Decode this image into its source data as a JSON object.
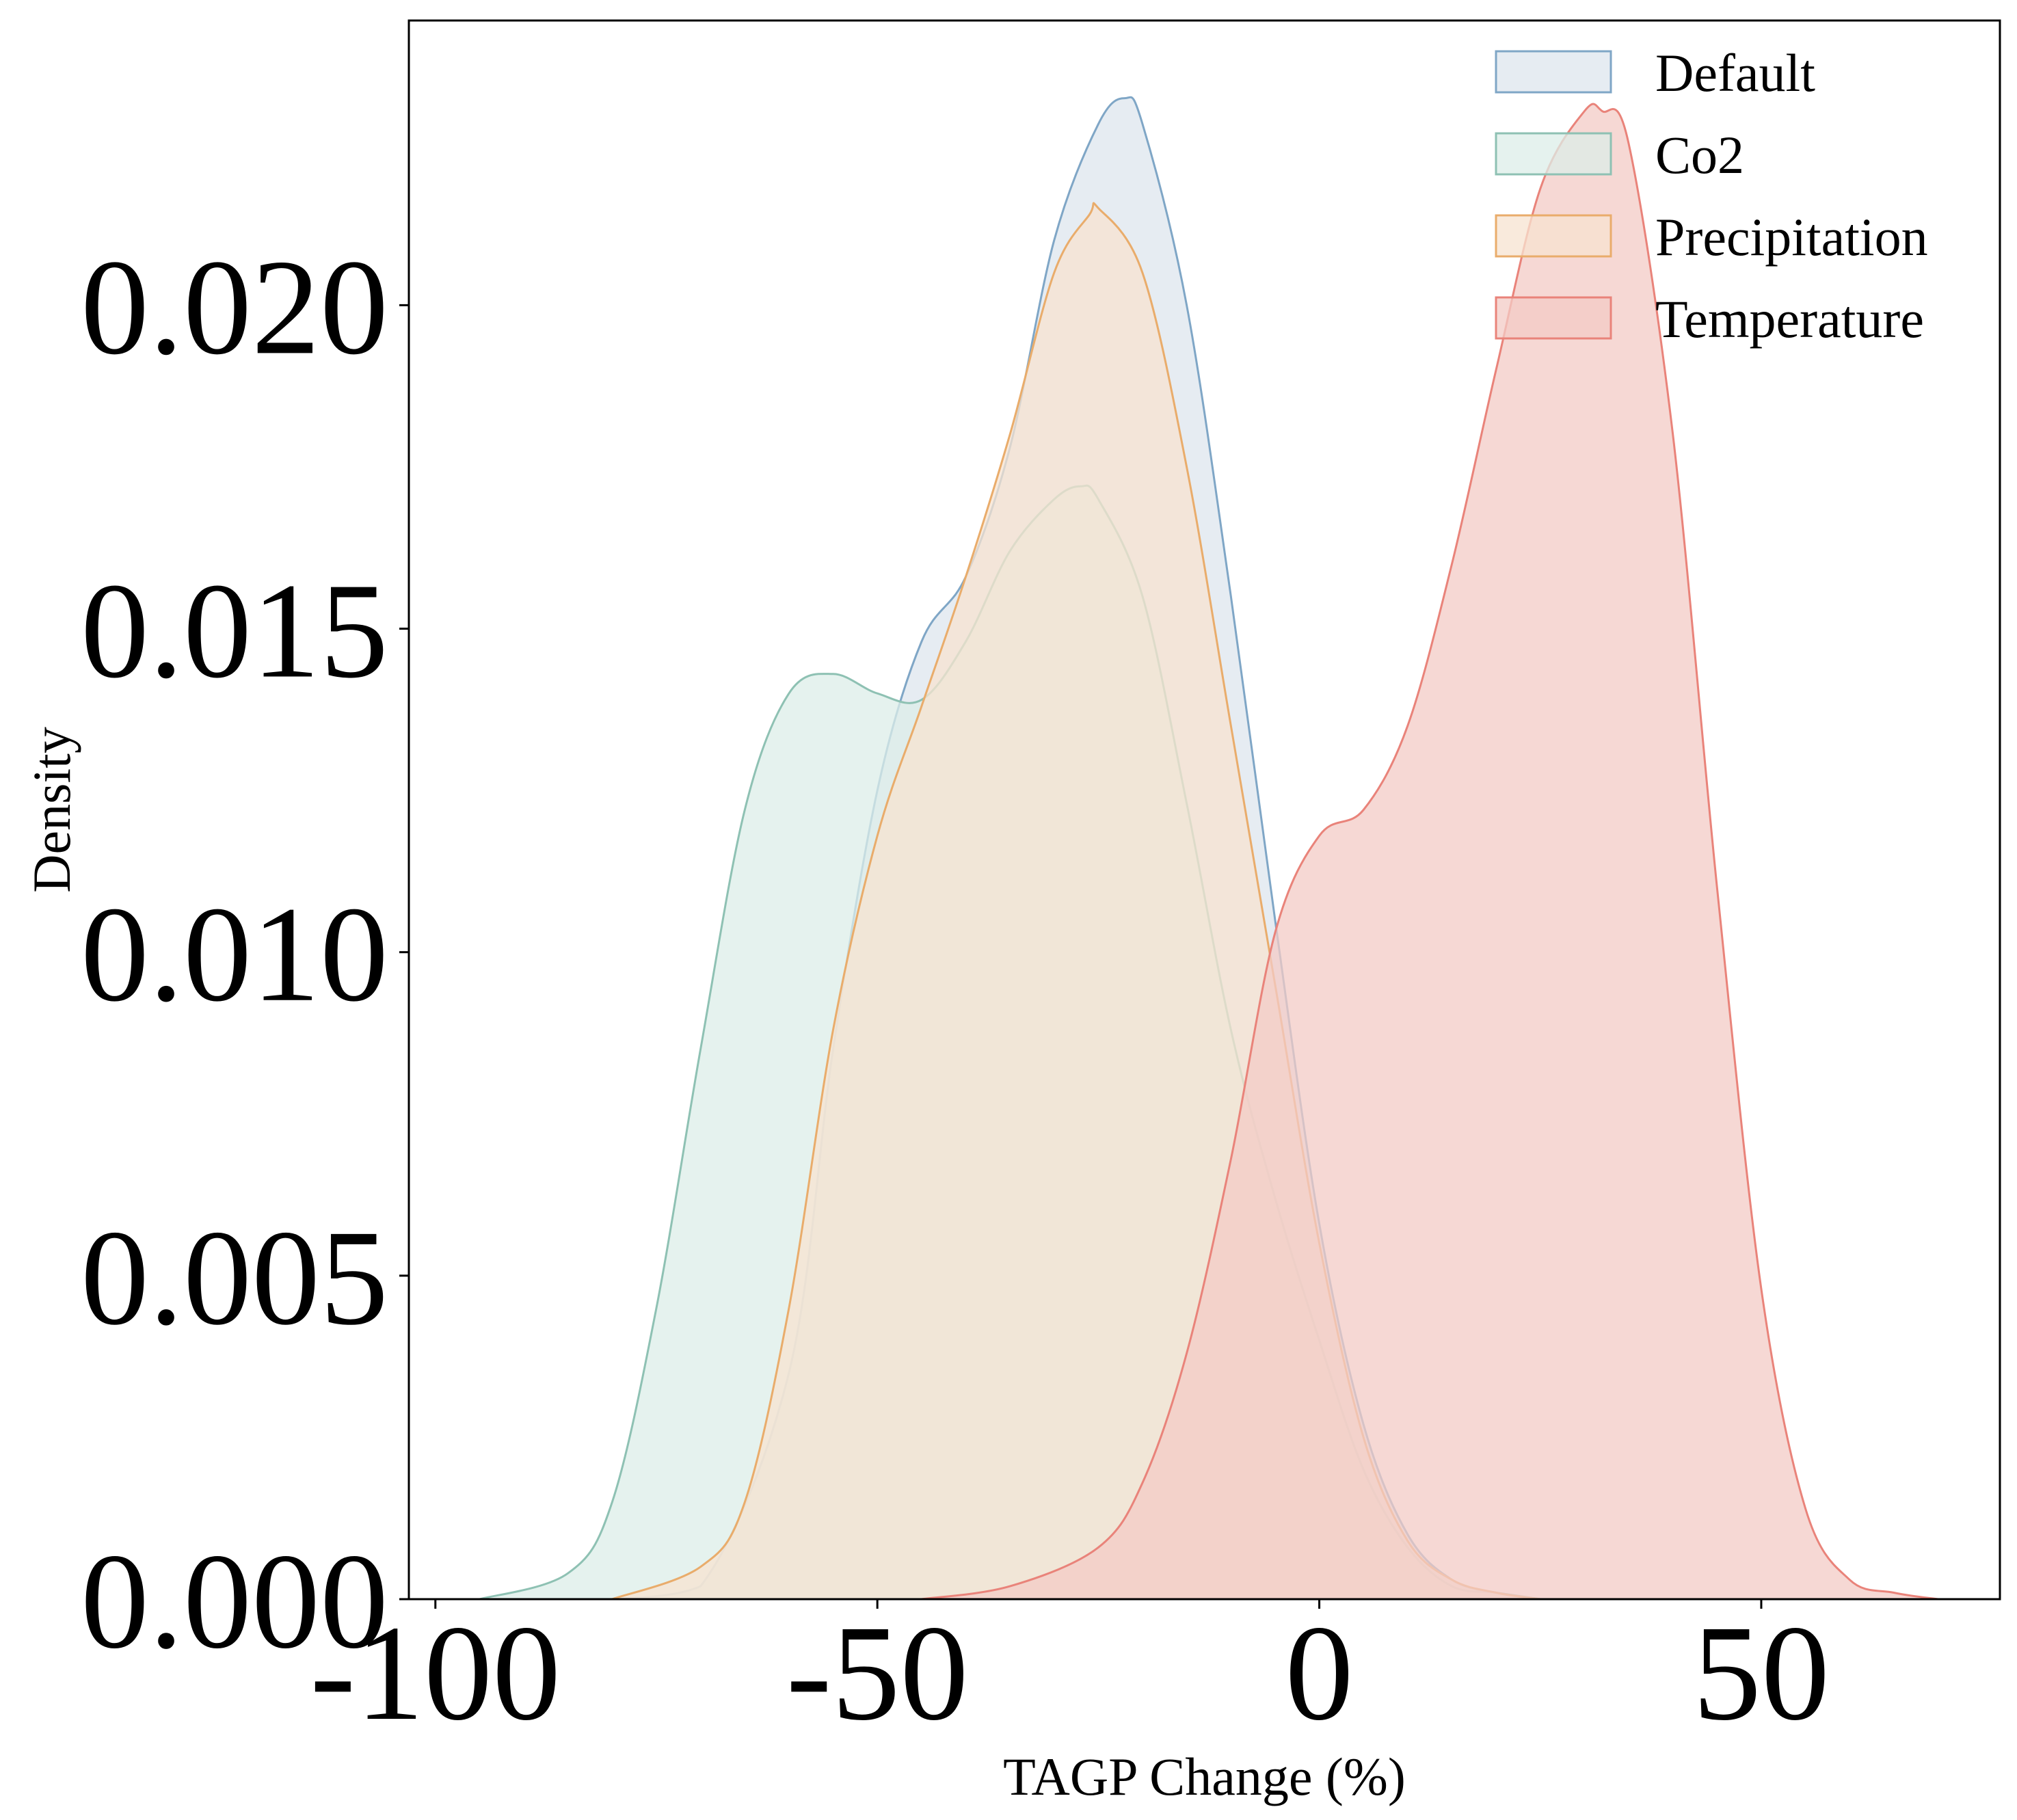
{
  "chart_data": {
    "type": "area",
    "subtype": "kde-density",
    "title": "",
    "xlabel": "TAGP Change (%)",
    "ylabel": "Density",
    "xlim": [
      -103,
      77
    ],
    "ylim": [
      0,
      0.0244
    ],
    "x_ticks": [
      -100,
      -50,
      0,
      50
    ],
    "x_tick_labels": [
      "-100",
      "-50",
      "0",
      "50"
    ],
    "y_ticks": [
      0.0,
      0.005,
      0.01,
      0.015,
      0.02
    ],
    "y_tick_labels": [
      "0.000",
      "0.005",
      "0.010",
      "0.015",
      "0.020"
    ],
    "grid": false,
    "legend_position": "top-right",
    "series": [
      {
        "name": "Default",
        "color": "#7fa6c6",
        "fill": "#dde5ee",
        "x": [
          -80,
          -70,
          -60,
          -55,
          -50,
          -45,
          -40,
          -35,
          -30,
          -25,
          -22,
          -20,
          -15,
          -10,
          -5,
          0,
          5,
          10,
          15,
          20,
          25
        ],
        "y": [
          0,
          0.0002,
          0.0035,
          0.0085,
          0.0125,
          0.0148,
          0.0158,
          0.0178,
          0.021,
          0.0228,
          0.0232,
          0.0228,
          0.02,
          0.0155,
          0.0105,
          0.0058,
          0.0027,
          0.001,
          0.0003,
          0.0001,
          0
        ]
      },
      {
        "name": "Co2",
        "color": "#8ec1b3",
        "fill": "#dcede8",
        "x": [
          -95,
          -85,
          -80,
          -75,
          -70,
          -65,
          -60,
          -55,
          -50,
          -45,
          -40,
          -35,
          -30,
          -27,
          -25,
          -20,
          -15,
          -10,
          -5,
          0,
          5,
          10,
          15,
          20,
          25
        ],
        "y": [
          0,
          0.0004,
          0.0015,
          0.0045,
          0.0085,
          0.0122,
          0.014,
          0.0143,
          0.014,
          0.0139,
          0.0148,
          0.0162,
          0.017,
          0.0172,
          0.017,
          0.0155,
          0.0123,
          0.0088,
          0.0062,
          0.004,
          0.002,
          0.0008,
          0.0002,
          0.0001,
          0
        ]
      },
      {
        "name": "Precipitation",
        "color": "#e9ac6b",
        "fill": "#f7e3d0",
        "x": [
          -80,
          -70,
          -65,
          -60,
          -55,
          -50,
          -45,
          -40,
          -35,
          -30,
          -26,
          -25,
          -20,
          -15,
          -10,
          -5,
          0,
          5,
          10,
          15,
          20,
          25
        ],
        "y": [
          0,
          0.0005,
          0.0015,
          0.0045,
          0.0088,
          0.0118,
          0.0138,
          0.0158,
          0.018,
          0.0205,
          0.0214,
          0.0215,
          0.0205,
          0.0175,
          0.0135,
          0.0095,
          0.0055,
          0.0025,
          0.0009,
          0.0003,
          0.0001,
          0
        ]
      },
      {
        "name": "Temperature",
        "color": "#e9837a",
        "fill": "#f3cbc6",
        "x": [
          -45,
          -35,
          -25,
          -20,
          -15,
          -10,
          -5,
          0,
          5,
          10,
          15,
          20,
          25,
          30,
          32,
          35,
          40,
          45,
          50,
          55,
          60,
          65,
          70
        ],
        "y": [
          0,
          0.0002,
          0.0008,
          0.0018,
          0.0038,
          0.0068,
          0.0103,
          0.0118,
          0.0122,
          0.0135,
          0.016,
          0.019,
          0.0218,
          0.023,
          0.023,
          0.0225,
          0.018,
          0.011,
          0.0048,
          0.0014,
          0.0003,
          0.0001,
          0
        ]
      }
    ]
  }
}
